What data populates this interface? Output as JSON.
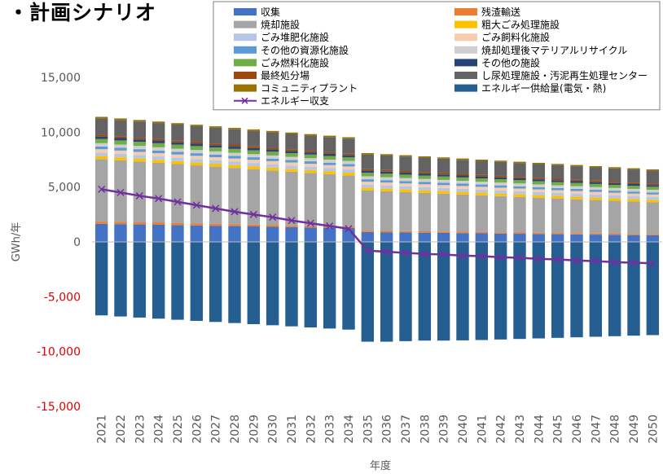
{
  "title": "・計画シナリオ",
  "chart_data": {
    "type": "bar",
    "stacked": true,
    "title": "・計画シナリオ",
    "xlabel": "年度",
    "ylabel": "GWh/年",
    "ylim": [
      -15000,
      15000
    ],
    "yticks": [
      15000,
      10000,
      5000,
      0,
      -5000,
      -10000,
      -15000
    ],
    "ytick_labels": [
      "15,000",
      "10,000",
      "5,000",
      "0",
      "-5,000",
      "-10,000",
      "-15,000"
    ],
    "negative_tick_color": "#e00000",
    "grid": false,
    "legend_position": "top",
    "categories": [
      "2021",
      "2022",
      "2023",
      "2024",
      "2025",
      "2026",
      "2027",
      "2028",
      "2029",
      "2030",
      "2031",
      "2032",
      "2033",
      "2034",
      "2035",
      "2036",
      "2037",
      "2038",
      "2039",
      "2040",
      "2041",
      "2042",
      "2043",
      "2044",
      "2045",
      "2046",
      "2047",
      "2048",
      "2049",
      "2050"
    ],
    "series": [
      {
        "name": "収集",
        "color": "#4472c4",
        "values": [
          1650,
          1620,
          1590,
          1560,
          1530,
          1500,
          1470,
          1440,
          1410,
          1380,
          1350,
          1320,
          1290,
          1260,
          900,
          880,
          860,
          840,
          820,
          800,
          780,
          760,
          740,
          720,
          700,
          680,
          660,
          640,
          620,
          600
        ]
      },
      {
        "name": "残渣輸送",
        "color": "#ed7d31",
        "values": [
          200,
          195,
          190,
          185,
          180,
          175,
          170,
          165,
          160,
          155,
          150,
          145,
          140,
          135,
          130,
          128,
          126,
          124,
          122,
          120,
          118,
          116,
          114,
          112,
          110,
          108,
          106,
          104,
          102,
          100
        ]
      },
      {
        "name": "焼却施設",
        "color": "#a5a5a5",
        "values": [
          5700,
          5620,
          5540,
          5460,
          5380,
          5300,
          5220,
          5140,
          5060,
          4980,
          4900,
          4820,
          4740,
          4660,
          3650,
          3600,
          3550,
          3500,
          3450,
          3400,
          3350,
          3300,
          3250,
          3200,
          3150,
          3100,
          3050,
          3000,
          2950,
          2900
        ]
      },
      {
        "name": "粗大ごみ処理施設",
        "color": "#ffc000",
        "values": [
          280,
          278,
          276,
          274,
          272,
          270,
          268,
          266,
          264,
          262,
          260,
          258,
          256,
          254,
          250,
          248,
          246,
          244,
          242,
          240,
          238,
          236,
          234,
          232,
          230,
          228,
          226,
          224,
          222,
          220
        ]
      },
      {
        "name": "ごみ堆肥化施設",
        "color": "#b4c7e7",
        "values": [
          320,
          318,
          316,
          314,
          312,
          310,
          308,
          306,
          304,
          302,
          300,
          298,
          296,
          294,
          290,
          288,
          286,
          284,
          282,
          280,
          278,
          276,
          274,
          272,
          270,
          268,
          266,
          264,
          262,
          260
        ]
      },
      {
        "name": "ごみ飼料化施設",
        "color": "#f8cbad",
        "values": [
          300,
          298,
          296,
          294,
          292,
          290,
          288,
          286,
          284,
          282,
          280,
          278,
          276,
          274,
          270,
          268,
          266,
          264,
          262,
          260,
          258,
          256,
          254,
          252,
          250,
          248,
          246,
          244,
          242,
          240
        ]
      },
      {
        "name": "その他の資源化施設",
        "color": "#5b9bd5",
        "values": [
          250,
          248,
          246,
          244,
          242,
          240,
          238,
          236,
          234,
          232,
          230,
          228,
          226,
          224,
          220,
          218,
          216,
          214,
          212,
          210,
          208,
          206,
          204,
          202,
          200,
          198,
          196,
          194,
          192,
          190
        ]
      },
      {
        "name": "焼却処理後マテリアルリサイクル",
        "color": "#d0cece",
        "values": [
          300,
          298,
          296,
          294,
          292,
          290,
          288,
          286,
          284,
          282,
          280,
          278,
          276,
          274,
          270,
          268,
          266,
          264,
          262,
          260,
          258,
          256,
          254,
          252,
          250,
          248,
          246,
          244,
          242,
          240
        ]
      },
      {
        "name": "ごみ燃料化施設",
        "color": "#70ad47",
        "values": [
          380,
          376,
          372,
          368,
          364,
          360,
          356,
          352,
          348,
          344,
          340,
          336,
          332,
          328,
          320,
          317,
          314,
          311,
          308,
          305,
          302,
          299,
          296,
          293,
          290,
          287,
          284,
          281,
          278,
          275
        ]
      },
      {
        "name": "その他の施設",
        "color": "#264478",
        "values": [
          220,
          218,
          216,
          214,
          212,
          210,
          208,
          206,
          204,
          202,
          200,
          198,
          196,
          194,
          190,
          188,
          186,
          184,
          182,
          180,
          178,
          176,
          174,
          172,
          170,
          168,
          166,
          164,
          162,
          160
        ]
      },
      {
        "name": "最終処分場",
        "color": "#9e480e",
        "values": [
          160,
          159,
          158,
          157,
          156,
          155,
          154,
          153,
          152,
          151,
          150,
          149,
          148,
          147,
          145,
          144,
          143,
          142,
          141,
          140,
          139,
          138,
          137,
          136,
          135,
          134,
          133,
          132,
          131,
          130
        ]
      },
      {
        "name": "し尿処理施設・汚泥再生処理センター",
        "color": "#636363",
        "values": [
          1500,
          1490,
          1480,
          1470,
          1460,
          1450,
          1440,
          1430,
          1420,
          1410,
          1400,
          1390,
          1380,
          1370,
          1340,
          1330,
          1320,
          1310,
          1300,
          1290,
          1280,
          1270,
          1260,
          1250,
          1240,
          1230,
          1220,
          1210,
          1200,
          1190
        ]
      },
      {
        "name": "コミュニティプラント",
        "color": "#997300",
        "values": [
          140,
          139,
          138,
          137,
          136,
          135,
          134,
          133,
          132,
          131,
          130,
          129,
          128,
          127,
          125,
          124,
          123,
          122,
          121,
          120,
          119,
          118,
          117,
          116,
          115,
          114,
          113,
          112,
          111,
          110
        ]
      },
      {
        "name": "エネルギー供給量(電気・熱)",
        "color": "#255e91",
        "values": [
          -6700,
          -6800,
          -6900,
          -7000,
          -7100,
          -7200,
          -7300,
          -7400,
          -7500,
          -7600,
          -7700,
          -7800,
          -7900,
          -8000,
          -9100,
          -9100,
          -9050,
          -9000,
          -9000,
          -8980,
          -8950,
          -8900,
          -8850,
          -8800,
          -8750,
          -8700,
          -8650,
          -8600,
          -8550,
          -8500
        ]
      }
    ],
    "line": {
      "name": "エネルギー収支",
      "color": "#7030a0",
      "marker": "x",
      "values": [
        4800,
        4500,
        4200,
        3950,
        3650,
        3350,
        3050,
        2750,
        2500,
        2250,
        1950,
        1700,
        1450,
        1200,
        -800,
        -900,
        -1000,
        -1100,
        -1150,
        -1250,
        -1300,
        -1400,
        -1450,
        -1550,
        -1600,
        -1700,
        -1750,
        -1850,
        -1900,
        -1950
      ]
    }
  }
}
